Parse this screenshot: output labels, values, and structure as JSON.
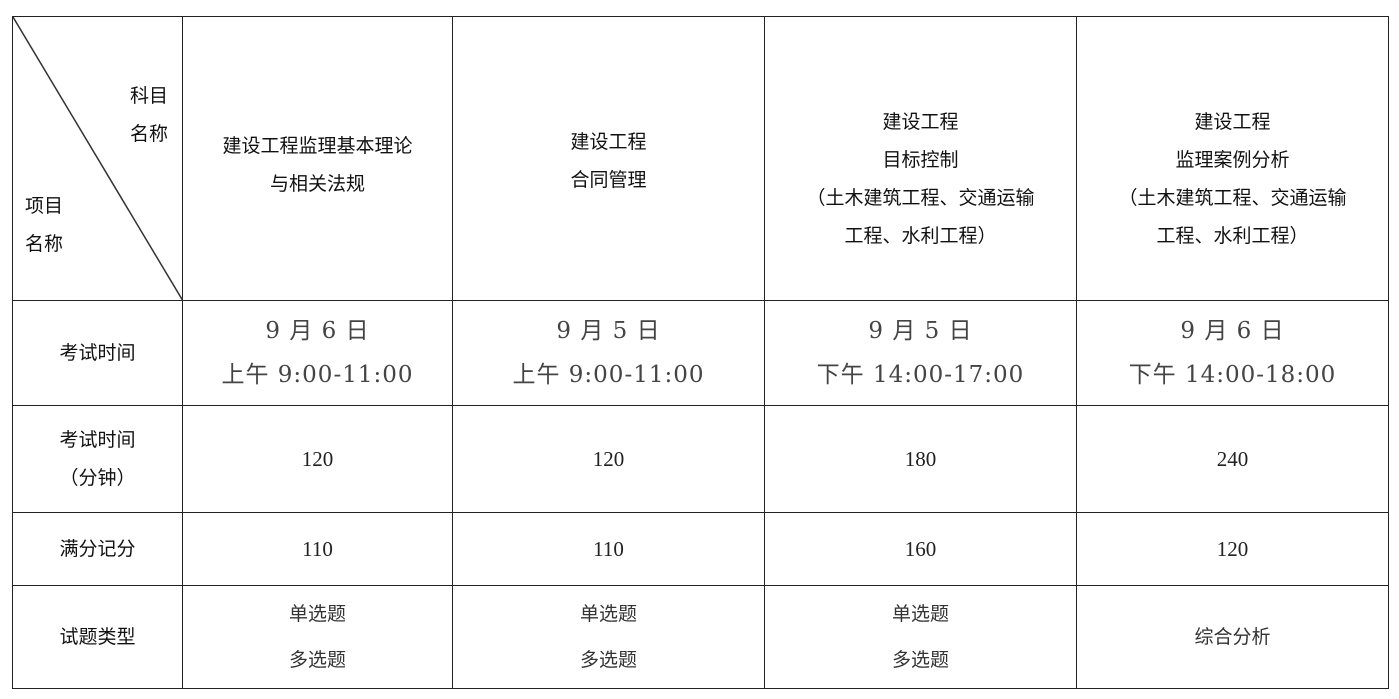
{
  "corner": {
    "top_right": [
      "科目",
      "名称"
    ],
    "bottom_left": [
      "项目",
      "名称"
    ]
  },
  "subjects": [
    {
      "lines": [
        "建设工程监理基本理论",
        "与相关法规"
      ]
    },
    {
      "lines": [
        "建设工程",
        "合同管理"
      ]
    },
    {
      "lines": [
        "建设工程",
        "目标控制",
        "（土木建筑工程、交通运输",
        "工程、水利工程）"
      ]
    },
    {
      "lines": [
        "建设工程",
        "监理案例分析",
        "（土木建筑工程、交通运输",
        "工程、水利工程）"
      ]
    }
  ],
  "rows": [
    {
      "label": [
        "考试时间"
      ],
      "cells": [
        [
          "9 月 6 日",
          "上午 9:00-11:00"
        ],
        [
          "9 月 5 日",
          "上午 9:00-11:00"
        ],
        [
          "9 月 5 日",
          "下午 14:00-17:00"
        ],
        [
          "9 月 6 日",
          "下午 14:00-18:00"
        ]
      ]
    },
    {
      "label": [
        "考试时间",
        "（分钟）"
      ],
      "cells": [
        [
          "120"
        ],
        [
          "120"
        ],
        [
          "180"
        ],
        [
          "240"
        ]
      ]
    },
    {
      "label": [
        "满分记分"
      ],
      "cells": [
        [
          "110"
        ],
        [
          "110"
        ],
        [
          "160"
        ],
        [
          "120"
        ]
      ]
    },
    {
      "label": [
        "试题类型"
      ],
      "cells": [
        [
          "单选题",
          "多选题"
        ],
        [
          "单选题",
          "多选题"
        ],
        [
          "单选题",
          "多选题"
        ],
        [
          "综合分析"
        ]
      ]
    }
  ]
}
